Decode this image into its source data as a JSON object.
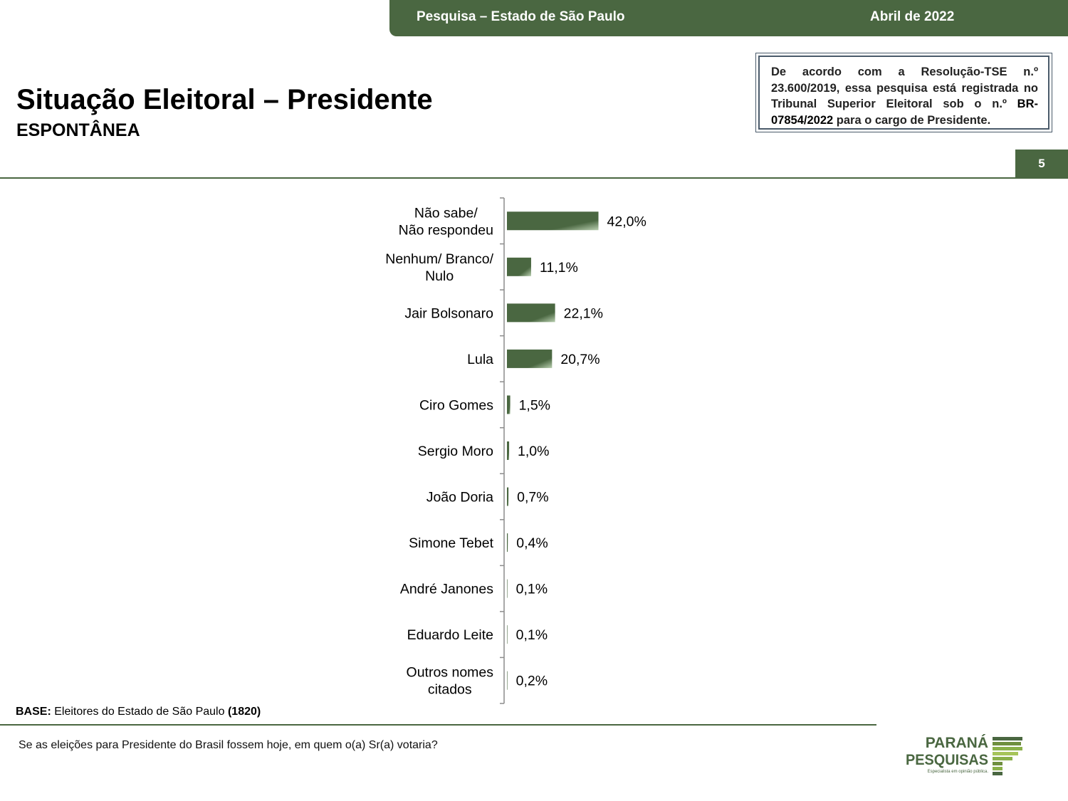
{
  "header": {
    "survey_label": "Pesquisa – Estado de São Paulo",
    "date_label": "Abril de 2022"
  },
  "page": {
    "title": "Situação Eleitoral – Presidente",
    "subtitle": "ESPONTÂNEA",
    "page_number": "5"
  },
  "notice": {
    "text_before": "De acordo com a Resolução-TSE n.º 23.600/2019, essa pesquisa está registrada no Tribunal Superior Eleitoral sob o n.º ",
    "registration": "BR-07854/2022",
    "text_after": " para o cargo de Presidente."
  },
  "chart_data": {
    "type": "bar",
    "orientation": "horizontal",
    "categories": [
      [
        "Não sabe/",
        "Não respondeu"
      ],
      [
        "Nenhum/ Branco/",
        "Nulo"
      ],
      [
        "Jair Bolsonaro"
      ],
      [
        "Lula"
      ],
      [
        "Ciro Gomes"
      ],
      [
        "Sergio Moro"
      ],
      [
        "João Doria"
      ],
      [
        "Simone Tebet"
      ],
      [
        "André Janones"
      ],
      [
        "Eduardo Leite"
      ],
      [
        "Outros nomes",
        "citados"
      ]
    ],
    "values": [
      42.0,
      11.1,
      22.1,
      20.7,
      1.5,
      1.0,
      0.7,
      0.4,
      0.1,
      0.1,
      0.2
    ],
    "value_labels": [
      "42,0%",
      "11,1%",
      "22,1%",
      "20,7%",
      "1,5%",
      "1,0%",
      "0,7%",
      "0,4%",
      "0,1%",
      "0,1%",
      "0,2%"
    ],
    "xlim": [
      0,
      100
    ],
    "grid": false,
    "bar_color": "#4a6741"
  },
  "footer": {
    "base_label": "BASE:",
    "base_text": "Eleitores do Estado de São Paulo",
    "base_count": "(1820)",
    "question": "Se as eleições para Presidente do Brasil fossem hoje, em quem o(a) Sr(a) votaria?"
  },
  "logo": {
    "line1": "PARANÁ",
    "line2": "PESQUISAS",
    "tagline": "Especialista em opinião pública.",
    "primary_color": "#4a6741",
    "accent_color": "#8ab04a"
  }
}
